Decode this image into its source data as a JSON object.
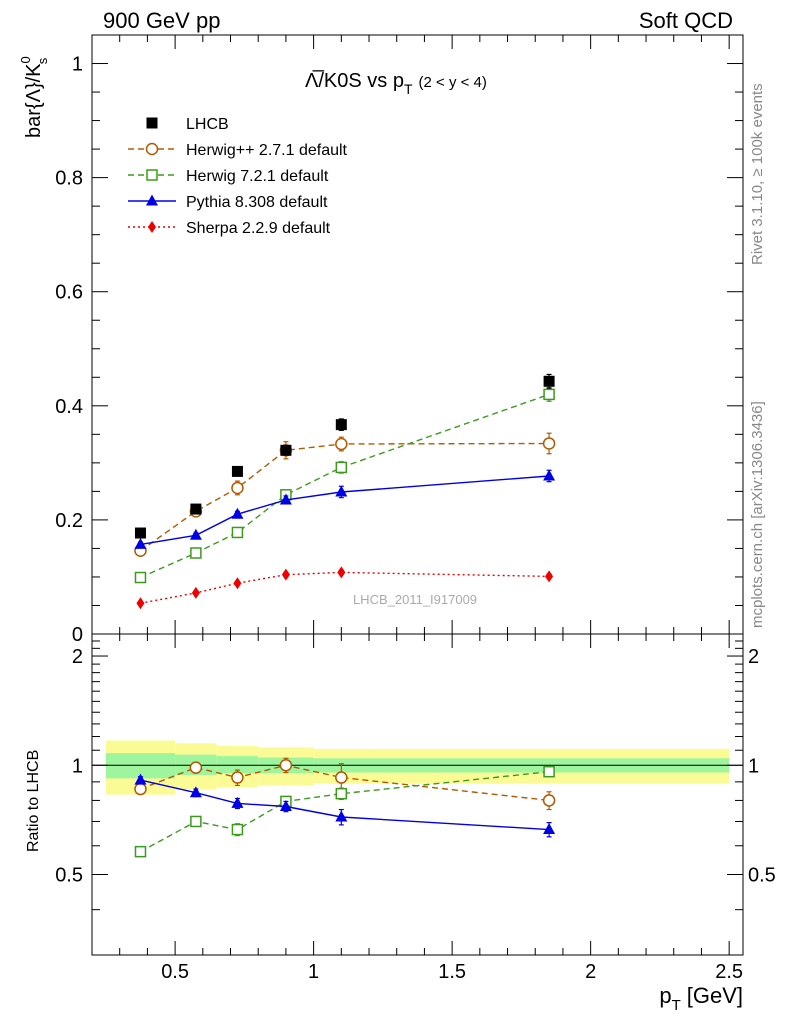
{
  "header": {
    "left": "900 GeV pp",
    "right": "Soft QCD"
  },
  "side_labels": {
    "rivet": "Rivet 3.1.10, ≥ 100k events",
    "mcplots": "mcplots.cern.ch [arXiv:1306.3436]"
  },
  "chart_data": {
    "type": "line",
    "title_main": "Λ̅/K0S vs p",
    "title_sub": "T",
    "title_range": "(2 < y < 4)",
    "watermark": "LHCB_2011_I917009",
    "xlabel": "p",
    "xlabel_sub": "T",
    "xlabel_unit": "[GeV]",
    "xlim": [
      0.2,
      2.55
    ],
    "x_ticks": [
      0.5,
      1,
      1.5,
      2,
      2.5
    ],
    "x_tick_labels": [
      "0.5",
      "1",
      "1.5",
      "2",
      "2.5"
    ],
    "top": {
      "ylabel": "bar{Λ}/K",
      "ylabel_sup": "0",
      "ylabel_sub": "s",
      "ylim": [
        0,
        1.05
      ],
      "y_ticks": [
        0,
        0.2,
        0.4,
        0.6,
        0.8,
        1
      ],
      "y_tick_labels": [
        "0",
        "0.2",
        "0.4",
        "0.6",
        "0.8",
        "1"
      ],
      "legend_position": "top-left",
      "series": [
        {
          "name": "LHCB",
          "marker": "square-filled",
          "color": "#000000",
          "line": "none",
          "x": [
            0.375,
            0.575,
            0.725,
            0.9,
            1.1,
            1.85
          ],
          "y": [
            0.177,
            0.219,
            0.285,
            0.322,
            0.367,
            0.443
          ],
          "err": [
            0.005,
            0.006,
            0.007,
            0.008,
            0.01,
            0.012
          ]
        },
        {
          "name": "Herwig++ 2.7.1 default",
          "marker": "circle-open",
          "color": "#b35900",
          "line": "dashed",
          "x": [
            0.375,
            0.575,
            0.725,
            0.9,
            1.1,
            1.85
          ],
          "y": [
            0.146,
            0.215,
            0.256,
            0.322,
            0.333,
            0.334
          ],
          "err": [
            0.005,
            0.008,
            0.012,
            0.015,
            0.012,
            0.018
          ]
        },
        {
          "name": "Herwig 7.2.1 default",
          "marker": "square-open",
          "color": "#3c9a1f",
          "line": "dashed",
          "x": [
            0.375,
            0.575,
            0.725,
            0.9,
            1.1,
            1.85
          ],
          "y": [
            0.099,
            0.142,
            0.178,
            0.244,
            0.292,
            0.42
          ],
          "err": [
            0.004,
            0.005,
            0.006,
            0.008,
            0.01,
            0.012
          ]
        },
        {
          "name": "Pythia 8.308 default",
          "marker": "triangle-filled",
          "color": "#0000e6",
          "line": "solid",
          "x": [
            0.375,
            0.575,
            0.725,
            0.9,
            1.1,
            1.85
          ],
          "y": [
            0.157,
            0.173,
            0.21,
            0.235,
            0.249,
            0.277
          ],
          "err": [
            0.004,
            0.004,
            0.005,
            0.007,
            0.01,
            0.01
          ]
        },
        {
          "name": "Sherpa 2.2.9 default",
          "marker": "diamond-filled",
          "color": "#ee0000",
          "line": "dotted",
          "x": [
            0.375,
            0.575,
            0.725,
            0.9,
            1.1,
            1.85
          ],
          "y": [
            0.054,
            0.072,
            0.089,
            0.104,
            0.108,
            0.101
          ],
          "err": [
            0.002,
            0.003,
            0.003,
            0.004,
            0.004,
            0.004
          ]
        }
      ]
    },
    "ratio": {
      "ylabel": "Ratio to LHCB",
      "ylim": [
        0.3,
        2.3
      ],
      "y_ticks": [
        0.5,
        1,
        2
      ],
      "y_tick_labels": [
        "0.5",
        "1",
        "2"
      ],
      "band_bins": [
        0.25,
        0.5,
        0.65,
        0.8,
        1.0,
        1.2,
        2.5
      ],
      "band_inner": [
        [
          0.92,
          1.08
        ],
        [
          0.94,
          1.07
        ],
        [
          0.95,
          1.06
        ],
        [
          0.95,
          1.05
        ],
        [
          0.955,
          1.045
        ],
        [
          0.955,
          1.045
        ]
      ],
      "band_outer": [
        [
          0.83,
          1.17
        ],
        [
          0.86,
          1.15
        ],
        [
          0.87,
          1.13
        ],
        [
          0.88,
          1.12
        ],
        [
          0.89,
          1.11
        ],
        [
          0.89,
          1.11
        ]
      ],
      "band_colors": {
        "inner": "#9ef59e",
        "outer": "#fbfb96"
      },
      "series": [
        {
          "name": "Herwig++ 2.7.1 default",
          "marker": "circle-open",
          "color": "#b35900",
          "line": "dashed",
          "x": [
            0.375,
            0.575,
            0.725,
            0.9,
            1.1,
            1.85
          ],
          "y": [
            0.86,
            0.985,
            0.925,
            1.0,
            0.925,
            0.8
          ],
          "err": [
            0.025,
            0.03,
            0.045,
            0.045,
            0.085,
            0.045
          ]
        },
        {
          "name": "Herwig 7.2.1 default",
          "marker": "square-open",
          "color": "#3c9a1f",
          "line": "dashed",
          "x": [
            0.375,
            0.575,
            0.725,
            0.9,
            1.1,
            1.85
          ],
          "y": [
            0.578,
            0.7,
            0.665,
            0.795,
            0.835,
            0.96
          ],
          "err": [
            0.015,
            0.02,
            0.025,
            0.025,
            0.03,
            0.03
          ]
        },
        {
          "name": "Pythia 8.308 default",
          "marker": "triangle-filled",
          "color": "#0000e6",
          "line": "solid",
          "x": [
            0.375,
            0.575,
            0.725,
            0.9,
            1.1,
            1.85
          ],
          "y": [
            0.91,
            0.84,
            0.785,
            0.77,
            0.72,
            0.665
          ],
          "err": [
            0.02,
            0.02,
            0.025,
            0.025,
            0.035,
            0.03
          ]
        }
      ]
    }
  }
}
